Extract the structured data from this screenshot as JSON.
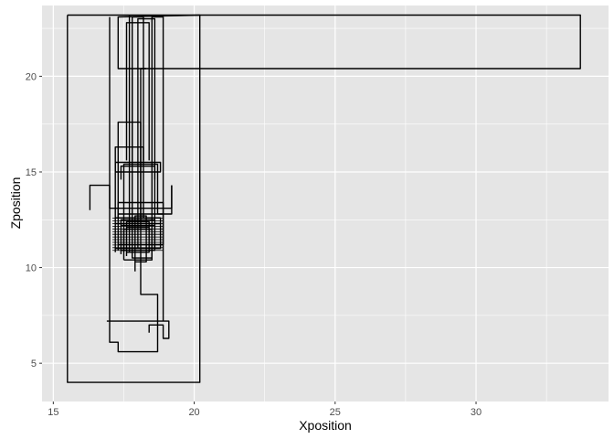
{
  "chart_data": {
    "type": "line",
    "title": "",
    "xlabel": "Xposition",
    "ylabel": "Zposition",
    "xlim": [
      14.6,
      34.7
    ],
    "ylim": [
      3.0,
      23.7
    ],
    "x_ticks": [
      15,
      20,
      25,
      30
    ],
    "x_tick_labels": [
      "15",
      "20",
      "25",
      "30"
    ],
    "y_ticks": [
      5,
      10,
      15,
      20
    ],
    "y_tick_labels": [
      "5",
      "10",
      "15",
      "20"
    ],
    "grid": true,
    "legend": "none",
    "colors": {
      "panel_bg": "#e5e5e5",
      "grid": "#ffffff",
      "line": "#000000"
    },
    "series": [
      {
        "x": [
          15.5,
          15.5,
          20.2,
          20.2,
          15.5
        ],
        "y": [
          23.2,
          4.0,
          4.0,
          23.2,
          23.2
        ]
      },
      {
        "x": [
          20.2,
          33.7,
          33.7,
          17.3,
          17.3,
          20.2,
          33.7
        ],
        "y": [
          23.2,
          23.2,
          20.4,
          20.4,
          23.1,
          23.2,
          23.2
        ]
      },
      {
        "x": [
          17.0,
          17.0,
          17.3,
          17.3,
          18.7,
          18.7,
          18.1,
          18.1,
          18.3
        ],
        "y": [
          23.1,
          6.1,
          6.1,
          5.6,
          5.6,
          8.6,
          8.6,
          20.4,
          20.4
        ]
      },
      {
        "x": [
          16.9,
          19.1,
          19.1,
          18.9,
          18.9,
          18.4,
          18.4
        ],
        "y": [
          7.2,
          7.2,
          6.3,
          6.3,
          7.0,
          7.0,
          6.6
        ]
      },
      {
        "x": [
          18.9,
          18.9,
          18.5,
          18.5,
          17.8,
          17.8
        ],
        "y": [
          7.2,
          23.1,
          23.1,
          10.5,
          10.5,
          20.4
        ]
      },
      {
        "x": [
          16.3,
          16.3,
          17.0,
          17.0,
          19.2,
          19.2
        ],
        "y": [
          13.0,
          14.3,
          14.3,
          13.1,
          13.1,
          14.3
        ]
      },
      {
        "x": [
          19.2,
          19.2,
          18.7,
          18.7,
          17.5,
          17.5
        ],
        "y": [
          14.3,
          12.8,
          12.8,
          15.4,
          15.4,
          10.8
        ]
      },
      {
        "x": [
          17.2,
          17.2,
          18.8,
          18.8,
          17.2,
          17.2,
          18.8
        ],
        "y": [
          10.8,
          12.6,
          12.6,
          11.0,
          11.0,
          12.3,
          12.3
        ]
      },
      {
        "x": [
          17.4,
          17.4,
          18.6,
          18.6,
          17.4,
          17.4,
          18.6
        ],
        "y": [
          10.7,
          12.5,
          12.5,
          10.9,
          10.9,
          12.2,
          12.2
        ]
      },
      {
        "x": [
          17.6,
          17.6,
          18.4,
          18.4,
          17.6,
          17.6,
          18.4
        ],
        "y": [
          10.6,
          12.4,
          12.4,
          10.8,
          10.8,
          12.1,
          12.1
        ]
      },
      {
        "x": [
          17.3,
          17.3,
          18.9,
          18.9,
          17.3,
          17.3,
          18.9
        ],
        "y": [
          10.9,
          13.4,
          13.4,
          11.2,
          11.2,
          12.8,
          12.8
        ]
      },
      {
        "x": [
          17.5,
          17.5,
          18.5,
          18.5,
          17.5
        ],
        "y": [
          10.4,
          12.0,
          12.0,
          10.4,
          10.4
        ]
      },
      {
        "x": [
          17.9,
          17.9,
          18.3,
          18.3,
          17.9
        ],
        "y": [
          9.8,
          12.7,
          12.7,
          10.3,
          10.3
        ]
      },
      {
        "x": [
          17.2,
          17.2,
          18.2,
          18.2,
          17.2
        ],
        "y": [
          12.6,
          16.3,
          16.3,
          12.6,
          12.6
        ]
      },
      {
        "x": [
          17.3,
          17.3,
          18.1,
          18.1
        ],
        "y": [
          12.6,
          17.6,
          17.6,
          12.6
        ]
      },
      {
        "x": [
          17.2,
          17.2,
          18.8,
          18.8,
          17.2
        ],
        "y": [
          15.0,
          15.5,
          15.5,
          15.0,
          15.0
        ]
      },
      {
        "x": [
          17.4,
          17.4,
          18.6,
          18.6
        ],
        "y": [
          14.6,
          15.3,
          15.3,
          14.6
        ]
      },
      {
        "x": [
          17.6,
          17.6,
          18.4,
          18.4
        ],
        "y": [
          15.6,
          22.8,
          22.8,
          15.6
        ]
      },
      {
        "x": [
          17.8,
          17.8,
          18.2,
          18.2
        ],
        "y": [
          15.6,
          23.1,
          23.1,
          15.6
        ]
      },
      {
        "x": [
          18.0,
          18.0,
          18.6,
          18.6
        ],
        "y": [
          11.0,
          23.0,
          23.0,
          11.0
        ]
      },
      {
        "x": [
          17.7,
          17.7
        ],
        "y": [
          10.8,
          23.2
        ]
      }
    ]
  }
}
